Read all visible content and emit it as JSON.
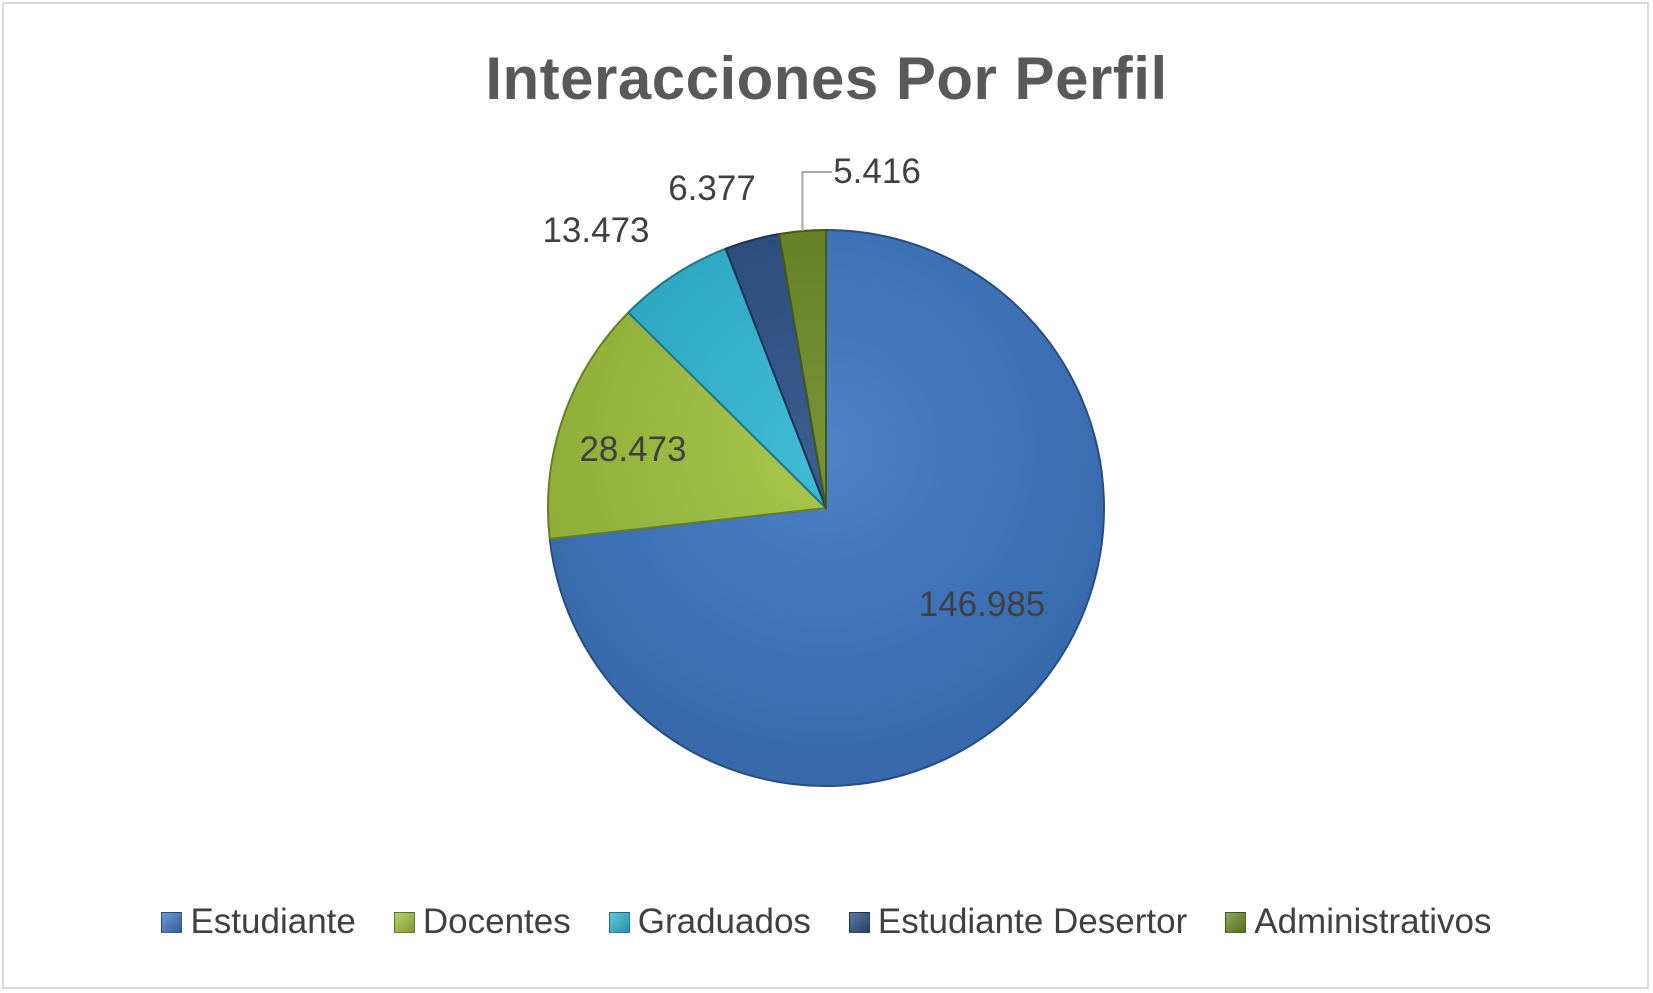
{
  "chart_data": {
    "type": "pie",
    "title": "Interacciones Por Perfil",
    "series": [
      {
        "name": "Estudiante",
        "value": 146985,
        "label": "146.985",
        "color": "#3e77c4"
      },
      {
        "name": "Docentes",
        "value": 28473,
        "label": "28.473",
        "color": "#9fc23c"
      },
      {
        "name": "Graduados",
        "value": 13473,
        "label": "13.473",
        "color": "#2fb6d3"
      },
      {
        "name": "Estudiante Desertor",
        "value": 6377,
        "label": "6.377",
        "color": "#2a4f85"
      },
      {
        "name": "Administrativos",
        "value": 5416,
        "label": "5.416",
        "color": "#6c8a24"
      }
    ],
    "legend": "bottom"
  }
}
